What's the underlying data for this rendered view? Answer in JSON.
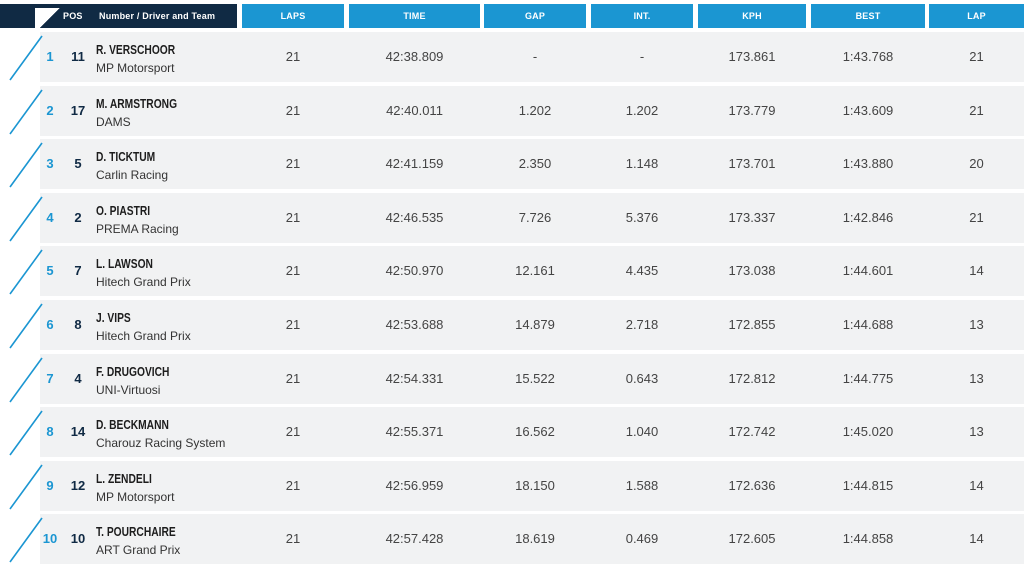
{
  "header": {
    "pos": "POS",
    "driver_team": "Number / Driver and Team",
    "laps": "LAPS",
    "time": "TIME",
    "gap": "GAP",
    "int": "INT.",
    "kph": "KPH",
    "best": "BEST",
    "lap": "LAP"
  },
  "colors": {
    "header_blue": "#1b96d2",
    "header_dark": "#102a44",
    "position_blue": "#1b96d2",
    "row_bg": "#f1f2f3"
  },
  "rows": [
    {
      "pos": "1",
      "num": "11",
      "driver": "R. VERSCHOOR",
      "team": "MP Motorsport",
      "laps": "21",
      "time": "42:38.809",
      "gap": "-",
      "int": "-",
      "kph": "173.861",
      "best": "1:43.768",
      "lap": "21"
    },
    {
      "pos": "2",
      "num": "17",
      "driver": "M. ARMSTRONG",
      "team": "DAMS",
      "laps": "21",
      "time": "42:40.011",
      "gap": "1.202",
      "int": "1.202",
      "kph": "173.779",
      "best": "1:43.609",
      "lap": "21"
    },
    {
      "pos": "3",
      "num": "5",
      "driver": "D. TICKTUM",
      "team": "Carlin Racing",
      "laps": "21",
      "time": "42:41.159",
      "gap": "2.350",
      "int": "1.148",
      "kph": "173.701",
      "best": "1:43.880",
      "lap": "20"
    },
    {
      "pos": "4",
      "num": "2",
      "driver": "O. PIASTRI",
      "team": "PREMA Racing",
      "laps": "21",
      "time": "42:46.535",
      "gap": "7.726",
      "int": "5.376",
      "kph": "173.337",
      "best": "1:42.846",
      "lap": "21"
    },
    {
      "pos": "5",
      "num": "7",
      "driver": "L. LAWSON",
      "team": "Hitech Grand Prix",
      "laps": "21",
      "time": "42:50.970",
      "gap": "12.161",
      "int": "4.435",
      "kph": "173.038",
      "best": "1:44.601",
      "lap": "14"
    },
    {
      "pos": "6",
      "num": "8",
      "driver": "J. VIPS",
      "team": "Hitech Grand Prix",
      "laps": "21",
      "time": "42:53.688",
      "gap": "14.879",
      "int": "2.718",
      "kph": "172.855",
      "best": "1:44.688",
      "lap": "13"
    },
    {
      "pos": "7",
      "num": "4",
      "driver": "F. DRUGOVICH",
      "team": "UNI-Virtuosi",
      "laps": "21",
      "time": "42:54.331",
      "gap": "15.522",
      "int": "0.643",
      "kph": "172.812",
      "best": "1:44.775",
      "lap": "13"
    },
    {
      "pos": "8",
      "num": "14",
      "driver": "D. BECKMANN",
      "team": "Charouz Racing System",
      "laps": "21",
      "time": "42:55.371",
      "gap": "16.562",
      "int": "1.040",
      "kph": "172.742",
      "best": "1:45.020",
      "lap": "13"
    },
    {
      "pos": "9",
      "num": "12",
      "driver": "L. ZENDELI",
      "team": "MP Motorsport",
      "laps": "21",
      "time": "42:56.959",
      "gap": "18.150",
      "int": "1.588",
      "kph": "172.636",
      "best": "1:44.815",
      "lap": "14"
    },
    {
      "pos": "10",
      "num": "10",
      "driver": "T. POURCHAIRE",
      "team": "ART Grand Prix",
      "laps": "21",
      "time": "42:57.428",
      "gap": "18.619",
      "int": "0.469",
      "kph": "172.605",
      "best": "1:44.858",
      "lap": "14"
    }
  ]
}
